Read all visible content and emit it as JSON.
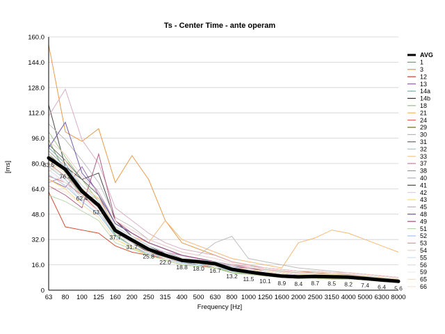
{
  "chart_data": {
    "type": "line",
    "title": "Ts - Center Time - ante operam",
    "xlabel": "Frequency [Hz]",
    "ylabel": "[ms]",
    "ylim": [
      0,
      160
    ],
    "yticks": [
      "0",
      "16.0",
      "32.0",
      "48.0",
      "64.0",
      "80.0",
      "96.0",
      "112.0",
      "128.0",
      "144.0",
      "160.0"
    ],
    "categories": [
      "63",
      "80",
      "100",
      "125",
      "160",
      "200",
      "250",
      "315",
      "400",
      "500",
      "630",
      "800",
      "1000",
      "1250",
      "1600",
      "2000",
      "2500",
      "3150",
      "4000",
      "5000",
      "6300",
      "8000"
    ],
    "grid": true,
    "legend_position": "right",
    "series": [
      {
        "name": "AVG",
        "color": "#000000",
        "values": [
          83.5,
          76.3,
          62.4,
          53.6,
          37.7,
          31.7,
          25.8,
          22.0,
          18.8,
          18.0,
          16.7,
          13.2,
          11.5,
          10.1,
          8.9,
          8.4,
          8.7,
          8.5,
          8.2,
          7.4,
          6.4,
          5.6
        ],
        "labels": [
          "83.5",
          "76.3",
          "62.4",
          "53.6",
          "37.7",
          "31.7",
          "25.8",
          "22.0",
          "18.8",
          "18.0",
          "16.7",
          "13.2",
          "11.5",
          "10.1",
          "8.9",
          "8.4",
          "8.7",
          "8.5",
          "8.2",
          "7.4",
          "6.4",
          "5.6"
        ]
      },
      {
        "name": "1",
        "color": "#6aa84f",
        "values": [
          95,
          74,
          60,
          52,
          35,
          28,
          22,
          19,
          16,
          15,
          14,
          11,
          10,
          9,
          8,
          7.5,
          7.5,
          7,
          7,
          6.5,
          5.5,
          5
        ]
      },
      {
        "name": "3",
        "color": "#e69138",
        "values": [
          155,
          100,
          94,
          102,
          68,
          85,
          70,
          44,
          30,
          26,
          22,
          18,
          16,
          14,
          13,
          12,
          11,
          10,
          9,
          8,
          7,
          6
        ]
      },
      {
        "name": "12",
        "color": "#cc4125",
        "values": [
          62,
          40,
          38,
          36,
          28,
          24,
          22,
          20,
          18,
          16,
          14,
          12,
          11,
          10,
          9,
          8.5,
          8,
          8,
          7.5,
          7,
          6,
          5.5
        ]
      },
      {
        "name": "13",
        "color": "#8e5ea2",
        "values": [
          70,
          65,
          78,
          60,
          38,
          30,
          25,
          22,
          18,
          17,
          15,
          13,
          11,
          10,
          9,
          8,
          8,
          8,
          7.5,
          7,
          6,
          5
        ]
      },
      {
        "name": "14a",
        "color": "#76a5af",
        "values": [
          90,
          80,
          64,
          52,
          36,
          30,
          24,
          21,
          18,
          16,
          15,
          12,
          11,
          10,
          9,
          8,
          8,
          8,
          7,
          7,
          6,
          5
        ]
      },
      {
        "name": "14b",
        "color": "#333333",
        "values": [
          117,
          78,
          70,
          74,
          44,
          34,
          28,
          23,
          19,
          17,
          16,
          13,
          12,
          10,
          9,
          8.5,
          8.5,
          8,
          8,
          7,
          6,
          5
        ]
      },
      {
        "name": "18",
        "color": "#93c47d",
        "values": [
          100,
          84,
          70,
          56,
          38,
          32,
          26,
          22,
          20,
          18,
          17,
          14,
          12,
          11,
          10,
          9,
          9,
          9,
          8.5,
          8,
          7,
          6
        ]
      },
      {
        "name": "21",
        "color": "#f6b26b",
        "values": [
          80,
          72,
          60,
          58,
          40,
          34,
          30,
          44,
          32,
          28,
          24,
          20,
          18,
          16,
          14,
          30,
          33,
          38,
          36,
          32,
          28,
          24
        ]
      },
      {
        "name": "24",
        "color": "#e06666",
        "values": [
          72,
          68,
          60,
          50,
          36,
          30,
          24,
          20,
          17,
          16,
          14,
          12,
          10,
          9,
          8,
          7.5,
          7.5,
          7.5,
          7,
          6.5,
          6,
          5
        ]
      },
      {
        "name": "29",
        "color": "#7f6000",
        "values": [
          86,
          76,
          64,
          54,
          36,
          30,
          25,
          21,
          18,
          17,
          15,
          13,
          11,
          10,
          9,
          8.5,
          8.5,
          8.5,
          8,
          7.5,
          6.5,
          5.5
        ]
      },
      {
        "name": "30",
        "color": "#b7b7b7",
        "values": [
          105,
          95,
          82,
          68,
          46,
          40,
          32,
          28,
          24,
          22,
          30,
          34,
          20,
          18,
          16,
          14,
          13,
          12,
          11,
          10,
          9,
          8
        ]
      },
      {
        "name": "31",
        "color": "#666666",
        "values": [
          92,
          82,
          70,
          60,
          42,
          36,
          30,
          26,
          22,
          20,
          18,
          15,
          13,
          12,
          11,
          10,
          10,
          10,
          9.5,
          9,
          8,
          7
        ]
      },
      {
        "name": "32",
        "color": "#a2c4c9",
        "values": [
          78,
          70,
          58,
          50,
          34,
          28,
          22,
          19,
          16,
          15,
          14,
          12,
          10,
          9,
          8,
          7.5,
          7.5,
          7,
          7,
          6.5,
          5.5,
          5
        ]
      },
      {
        "name": "33",
        "color": "#f9cb9c",
        "values": [
          75,
          82,
          66,
          58,
          40,
          34,
          28,
          24,
          20,
          19,
          18,
          15,
          14,
          13,
          12,
          11,
          11,
          11,
          10,
          9,
          8,
          7
        ]
      },
      {
        "name": "37",
        "color": "#c27ba0",
        "values": [
          68,
          72,
          60,
          52,
          36,
          30,
          26,
          24,
          22,
          20,
          18,
          16,
          15,
          14,
          13,
          12,
          12,
          11,
          11,
          10,
          9,
          8
        ]
      },
      {
        "name": "38",
        "color": "#999999",
        "values": [
          88,
          78,
          66,
          56,
          40,
          34,
          28,
          24,
          20,
          18,
          17,
          14,
          12,
          11,
          10,
          9,
          9,
          9,
          8.5,
          8,
          7,
          6
        ]
      },
      {
        "name": "40",
        "color": "#b4a7d6",
        "values": [
          82,
          74,
          62,
          54,
          38,
          32,
          26,
          22,
          19,
          18,
          16,
          14,
          12,
          11,
          10,
          9.5,
          9.5,
          9,
          9,
          8.5,
          7.5,
          6.5
        ]
      },
      {
        "name": "41",
        "color": "#444444",
        "values": [
          84,
          76,
          62,
          52,
          36,
          30,
          24,
          21,
          18,
          17,
          15,
          12,
          11,
          10,
          9,
          8,
          8,
          8,
          7.5,
          7,
          6,
          5
        ]
      },
      {
        "name": "42",
        "color": "#d9d2e9",
        "values": [
          76,
          68,
          56,
          48,
          34,
          28,
          23,
          20,
          17,
          16,
          15,
          12,
          11,
          10,
          9,
          8,
          8,
          8,
          7.5,
          7,
          6,
          5
        ]
      },
      {
        "name": "43",
        "color": "#ffd966",
        "values": [
          70,
          64,
          54,
          46,
          32,
          27,
          22,
          19,
          16,
          15,
          14,
          12,
          10,
          9,
          8,
          7.5,
          7.5,
          7,
          7,
          6.5,
          5.5,
          5
        ]
      },
      {
        "name": "45",
        "color": "#d5a6bd",
        "values": [
          110,
          127,
          95,
          80,
          52,
          44,
          36,
          30,
          26,
          24,
          22,
          18,
          16,
          14,
          13,
          12,
          12,
          11,
          11,
          10,
          9,
          8
        ]
      },
      {
        "name": "48",
        "color": "#674ea7",
        "values": [
          90,
          106,
          74,
          62,
          42,
          36,
          30,
          26,
          22,
          20,
          18,
          15,
          13,
          12,
          11,
          10,
          10,
          10,
          9.5,
          9,
          8,
          7
        ]
      },
      {
        "name": "49",
        "color": "#a64d79",
        "values": [
          66,
          60,
          52,
          86,
          44,
          36,
          30,
          26,
          22,
          20,
          18,
          15,
          14,
          12,
          11,
          10,
          10,
          10,
          9,
          8.5,
          7.5,
          6.5
        ]
      },
      {
        "name": "51",
        "color": "#b6d7a8",
        "values": [
          60,
          56,
          50,
          44,
          30,
          26,
          22,
          19,
          16,
          15,
          14,
          12,
          10,
          9,
          8,
          7.5,
          7.5,
          7,
          7,
          6.5,
          5.5,
          5
        ]
      },
      {
        "name": "52",
        "color": "#9fc5e8",
        "values": [
          73,
          66,
          56,
          48,
          34,
          28,
          23,
          20,
          17,
          16,
          15,
          12,
          11,
          10,
          9,
          8.5,
          8.5,
          8,
          8,
          7.5,
          6.5,
          5.5
        ]
      },
      {
        "name": "53",
        "color": "#c9a0a0",
        "values": [
          80,
          72,
          62,
          54,
          38,
          32,
          26,
          22,
          20,
          19,
          18,
          16,
          14,
          13,
          12,
          11,
          11,
          10,
          10,
          9,
          8,
          7
        ]
      },
      {
        "name": "54",
        "color": "#f4cccc",
        "values": [
          94,
          86,
          72,
          62,
          44,
          38,
          32,
          28,
          24,
          22,
          20,
          17,
          15,
          14,
          13,
          12,
          12,
          11,
          11,
          10,
          9,
          8
        ]
      },
      {
        "name": "55",
        "color": "#cfe2f3",
        "values": [
          86,
          78,
          66,
          56,
          40,
          34,
          28,
          24,
          21,
          19,
          18,
          15,
          13,
          12,
          11,
          10,
          10,
          10,
          9.5,
          9,
          8,
          7
        ]
      },
      {
        "name": "56",
        "color": "#dddddd",
        "values": [
          78,
          72,
          60,
          52,
          36,
          30,
          26,
          22,
          20,
          18,
          17,
          14,
          13,
          12,
          11,
          10,
          10,
          9.5,
          9,
          8.5,
          7.5,
          6.5
        ]
      },
      {
        "name": "59",
        "color": "#eeeeee",
        "values": [
          74,
          68,
          58,
          50,
          36,
          30,
          25,
          22,
          19,
          18,
          16,
          14,
          12,
          11,
          10,
          9,
          9,
          9,
          8.5,
          8,
          7,
          6
        ]
      },
      {
        "name": "65",
        "color": "#f6e3b4",
        "values": [
          82,
          74,
          62,
          54,
          38,
          32,
          26,
          22,
          20,
          18,
          17,
          14,
          13,
          12,
          11,
          10,
          10,
          10,
          9.5,
          9,
          8,
          7
        ]
      },
      {
        "name": "66",
        "color": "#fce5cd",
        "values": [
          66,
          62,
          54,
          46,
          32,
          28,
          24,
          20,
          18,
          17,
          15,
          13,
          12,
          11,
          10,
          9,
          9,
          9,
          8.5,
          8,
          7,
          6
        ]
      }
    ]
  }
}
